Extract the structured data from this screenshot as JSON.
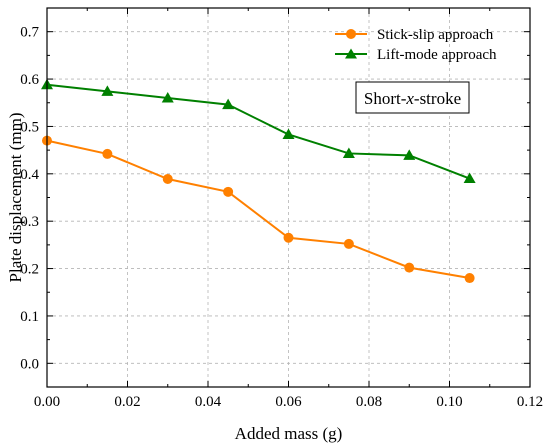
{
  "chart_data": {
    "type": "line",
    "xlabel": "Added mass (g)",
    "ylabel": "Plate displacement (mm)",
    "xlim": [
      0.0,
      0.12
    ],
    "ylim": [
      -0.05,
      0.75
    ],
    "x_ticks": [
      "0.00",
      "0.02",
      "0.04",
      "0.06",
      "0.08",
      "0.10",
      "0.12"
    ],
    "y_ticks": [
      "0.0",
      "0.1",
      "0.2",
      "0.3",
      "0.4",
      "0.5",
      "0.6",
      "0.7"
    ],
    "grid": true,
    "legend_position": "top-right",
    "annotation": {
      "prefix": "Short-",
      "italic": "x",
      "suffix": "-stroke"
    },
    "series": [
      {
        "name": "Stick-slip approach",
        "color": "#ff8000",
        "marker": "circle",
        "x": [
          0.0,
          0.015,
          0.03,
          0.045,
          0.06,
          0.075,
          0.09,
          0.105
        ],
        "y": [
          0.47,
          0.442,
          0.389,
          0.362,
          0.265,
          0.252,
          0.202,
          0.18
        ]
      },
      {
        "name": "Lift-mode approach",
        "color": "#008000",
        "marker": "triangle",
        "x": [
          0.0,
          0.015,
          0.03,
          0.045,
          0.06,
          0.075,
          0.09,
          0.105
        ],
        "y": [
          0.588,
          0.574,
          0.56,
          0.546,
          0.483,
          0.443,
          0.439,
          0.39
        ]
      }
    ]
  }
}
